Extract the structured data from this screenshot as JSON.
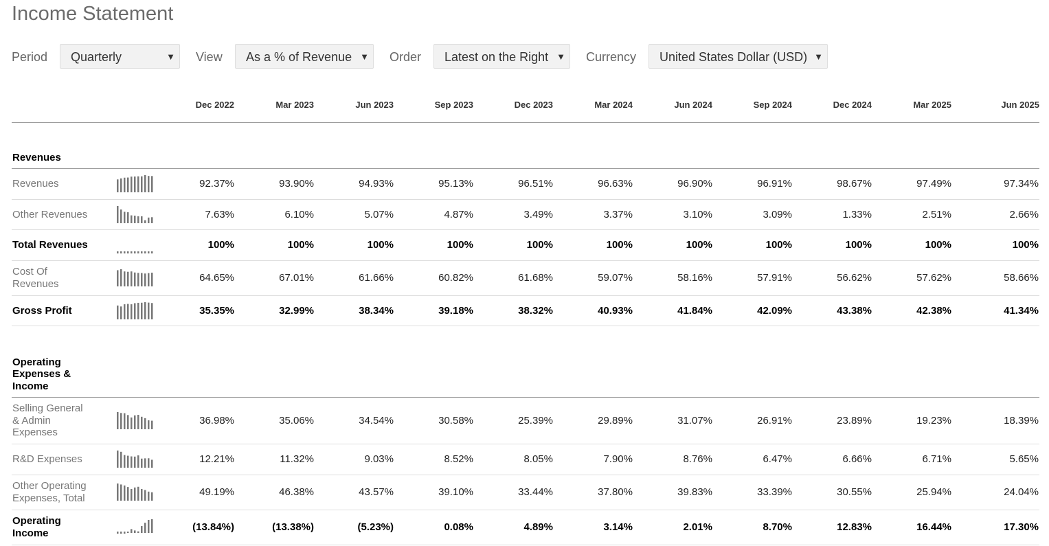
{
  "page": {
    "title": "Income Statement"
  },
  "filters": [
    {
      "label": "Period",
      "value": "Quarterly"
    },
    {
      "label": "View",
      "value": "As a % of Revenue"
    },
    {
      "label": "Order",
      "value": "Latest on the Right"
    },
    {
      "label": "Currency",
      "value": "United States Dollar (USD)"
    }
  ],
  "caret_glyph": "▼",
  "columns": [
    "Dec 2022",
    "Mar 2023",
    "Jun 2023",
    "Sep 2023",
    "Dec 2023",
    "Mar 2024",
    "Jun 2024",
    "Sep 2024",
    "Dec 2024",
    "Mar 2025",
    "Jun 2025"
  ],
  "sections": [
    {
      "title": "Revenues",
      "rows": [
        {
          "label": "Revenues",
          "bold": false,
          "values": [
            "92.37%",
            "93.90%",
            "94.93%",
            "95.13%",
            "96.51%",
            "96.63%",
            "96.90%",
            "96.91%",
            "98.67%",
            "97.49%",
            "97.34%"
          ],
          "spark": [
            92.37,
            93.9,
            94.93,
            95.13,
            96.51,
            96.63,
            96.9,
            96.91,
            98.67,
            97.49,
            97.34
          ]
        },
        {
          "label": "Other Revenues",
          "bold": false,
          "values": [
            "7.63%",
            "6.10%",
            "5.07%",
            "4.87%",
            "3.49%",
            "3.37%",
            "3.10%",
            "3.09%",
            "1.33%",
            "2.51%",
            "2.66%"
          ],
          "spark": [
            7.63,
            6.1,
            5.07,
            4.87,
            3.49,
            3.37,
            3.1,
            3.09,
            1.33,
            2.51,
            2.66
          ]
        },
        {
          "label": "Total Revenues",
          "bold": true,
          "values": [
            "100%",
            "100%",
            "100%",
            "100%",
            "100%",
            "100%",
            "100%",
            "100%",
            "100%",
            "100%",
            "100%"
          ],
          "spark": [
            100,
            100,
            100,
            100,
            100,
            100,
            100,
            100,
            100,
            100,
            100
          ]
        },
        {
          "label": "Cost Of Revenues",
          "bold": false,
          "values": [
            "64.65%",
            "67.01%",
            "61.66%",
            "60.82%",
            "61.68%",
            "59.07%",
            "58.16%",
            "57.91%",
            "56.62%",
            "57.62%",
            "58.66%"
          ],
          "spark": [
            64.65,
            67.01,
            61.66,
            60.82,
            61.68,
            59.07,
            58.16,
            57.91,
            56.62,
            57.62,
            58.66
          ]
        },
        {
          "label": "Gross Profit",
          "bold": true,
          "values": [
            "35.35%",
            "32.99%",
            "38.34%",
            "39.18%",
            "38.32%",
            "40.93%",
            "41.84%",
            "42.09%",
            "43.38%",
            "42.38%",
            "41.34%"
          ],
          "spark": [
            35.35,
            32.99,
            38.34,
            39.18,
            38.32,
            40.93,
            41.84,
            42.09,
            43.38,
            42.38,
            41.34
          ]
        }
      ]
    },
    {
      "title": "Operating Expenses & Income",
      "rows": [
        {
          "label": "Selling General & Admin Expenses",
          "bold": false,
          "values": [
            "36.98%",
            "35.06%",
            "34.54%",
            "30.58%",
            "25.39%",
            "29.89%",
            "31.07%",
            "26.91%",
            "23.89%",
            "19.23%",
            "18.39%"
          ],
          "spark": [
            36.98,
            35.06,
            34.54,
            30.58,
            25.39,
            29.89,
            31.07,
            26.91,
            23.89,
            19.23,
            18.39
          ]
        },
        {
          "label": "R&D Expenses",
          "bold": false,
          "values": [
            "12.21%",
            "11.32%",
            "9.03%",
            "8.52%",
            "8.05%",
            "7.90%",
            "8.76%",
            "6.47%",
            "6.66%",
            "6.71%",
            "5.65%"
          ],
          "spark": [
            12.21,
            11.32,
            9.03,
            8.52,
            8.05,
            7.9,
            8.76,
            6.47,
            6.66,
            6.71,
            5.65
          ]
        },
        {
          "label": "Other Operating Expenses, Total",
          "bold": false,
          "values": [
            "49.19%",
            "46.38%",
            "43.57%",
            "39.10%",
            "33.44%",
            "37.80%",
            "39.83%",
            "33.39%",
            "30.55%",
            "25.94%",
            "24.04%"
          ],
          "spark": [
            49.19,
            46.38,
            43.57,
            39.1,
            33.44,
            37.8,
            39.83,
            33.39,
            30.55,
            25.94,
            24.04
          ]
        },
        {
          "label": "Operating Income",
          "bold": true,
          "values": [
            "(13.84%)",
            "(13.38%)",
            "(5.23%)",
            "0.08%",
            "4.89%",
            "3.14%",
            "2.01%",
            "8.70%",
            "12.83%",
            "16.44%",
            "17.30%"
          ],
          "spark": [
            -13.84,
            -13.38,
            -5.23,
            0.08,
            4.89,
            3.14,
            2.01,
            8.7,
            12.83,
            16.44,
            17.3
          ]
        }
      ]
    }
  ]
}
